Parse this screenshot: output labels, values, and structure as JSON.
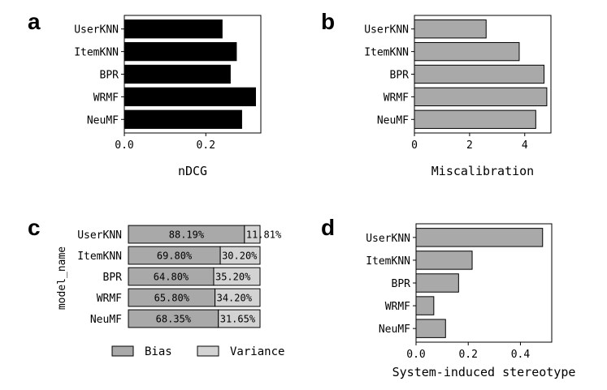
{
  "chart_data": [
    {
      "panel_letter": "a",
      "type": "bar",
      "orientation": "horizontal",
      "categories": [
        "UserKNN",
        "ItemKNN",
        "BPR",
        "WRMF",
        "NeuMF"
      ],
      "values": [
        0.24,
        0.275,
        0.26,
        0.322,
        0.288
      ],
      "xlabel": "nDCG",
      "ylabel": "",
      "xlim": [
        0,
        0.335
      ],
      "xticks": [
        "0.0",
        "0.2"
      ],
      "bar_color": "#000000"
    },
    {
      "panel_letter": "b",
      "type": "bar",
      "orientation": "horizontal",
      "categories": [
        "UserKNN",
        "ItemKNN",
        "BPR",
        "WRMF",
        "NeuMF"
      ],
      "values": [
        2.6,
        3.8,
        4.7,
        4.8,
        4.4
      ],
      "xlabel": "Miscalibration",
      "ylabel": "",
      "xlim": [
        0,
        4.95
      ],
      "xticks": [
        "0",
        "2",
        "4"
      ],
      "bar_color": "#a9a9a9"
    },
    {
      "panel_letter": "c",
      "type": "bar",
      "orientation": "horizontal",
      "stacked": true,
      "categories": [
        "UserKNN",
        "ItemKNN",
        "BPR",
        "WRMF",
        "NeuMF"
      ],
      "ylabel": "model_name",
      "xlim": [
        0,
        100
      ],
      "series": [
        {
          "name": "Bias",
          "values": [
            88.19,
            69.8,
            64.8,
            65.8,
            68.35
          ],
          "labels": [
            "88.19%",
            "69.80%",
            "64.80%",
            "65.80%",
            "68.35%"
          ],
          "color": "#a9a9a9"
        },
        {
          "name": "Variance",
          "values": [
            11.81,
            30.2,
            35.2,
            34.2,
            31.65
          ],
          "labels": [
            "11.81%",
            "30.20%",
            "35.20%",
            "34.20%",
            "31.65%"
          ],
          "color": "#d3d3d3"
        }
      ],
      "legend_position": "bottom"
    },
    {
      "panel_letter": "d",
      "type": "bar",
      "orientation": "horizontal",
      "categories": [
        "UserKNN",
        "ItemKNN",
        "BPR",
        "WRMF",
        "NeuMF"
      ],
      "values": [
        0.485,
        0.215,
        0.163,
        0.068,
        0.113
      ],
      "xlabel": "System-induced stereotype",
      "ylabel": "",
      "xlim": [
        0,
        0.52
      ],
      "xticks": [
        "0.0",
        "0.2",
        "0.4"
      ],
      "bar_color": "#a9a9a9"
    }
  ]
}
